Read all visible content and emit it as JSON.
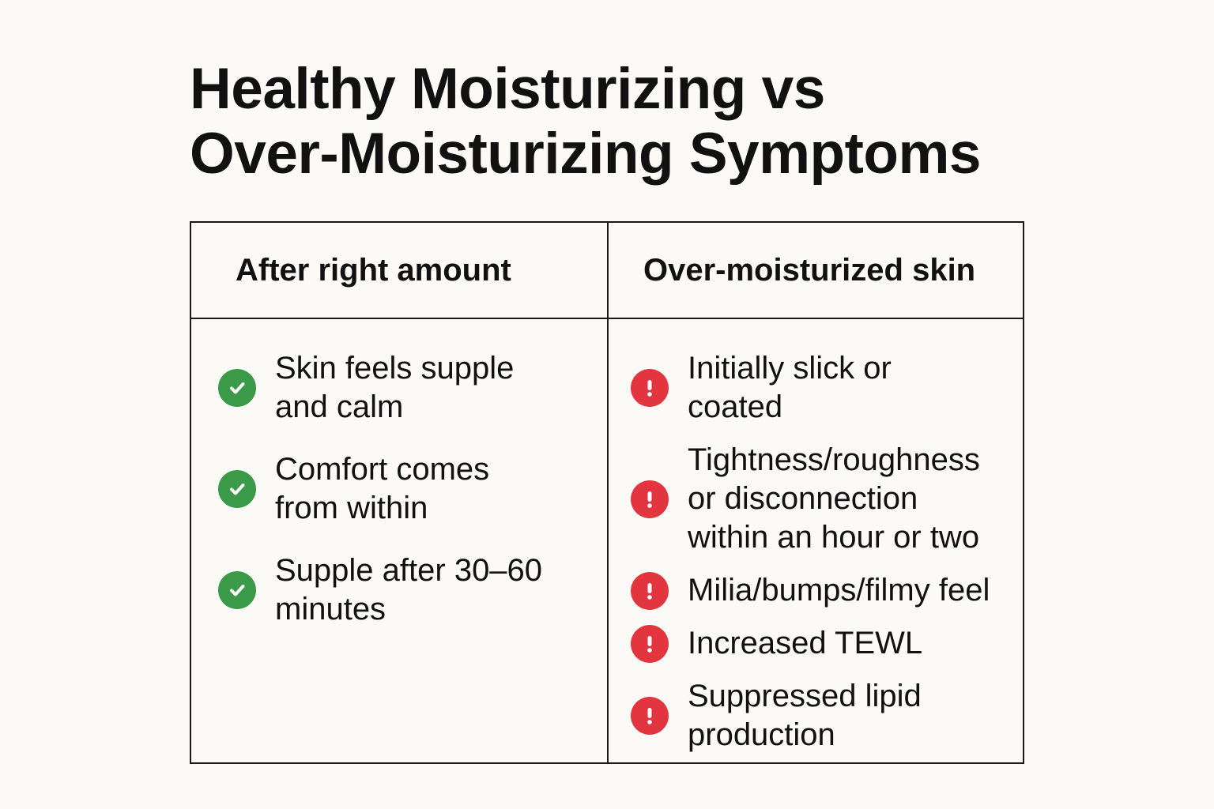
{
  "title": {
    "line1": "Healthy Moisturizing vs",
    "line2": "Over-Moisturizing Symptoms"
  },
  "table": {
    "left_column": {
      "header": "After right amount",
      "icon": "check-circle-icon",
      "icon_color": "#3a9a47",
      "items": [
        {
          "line1": "Skin feels supple",
          "line2": "and calm"
        },
        {
          "line1": "Comfort comes",
          "line2": "from within"
        },
        {
          "line1": "Supple after 30–60",
          "line2": "minutes"
        }
      ]
    },
    "right_column": {
      "header": "Over-moisturized skin",
      "icon": "exclamation-circle-icon",
      "icon_color": "#e2353f",
      "items": [
        {
          "line1": "Initially slick or",
          "line2": "coated"
        },
        {
          "line1": "Tightness/roughness",
          "line2": "or disconnection",
          "line3": "within an hour or two"
        },
        {
          "line1": "Milia/bumps/filmy feel"
        },
        {
          "line1": "Increased TEWL"
        },
        {
          "line1": "Suppressed lipid",
          "line2": "production"
        }
      ]
    }
  }
}
